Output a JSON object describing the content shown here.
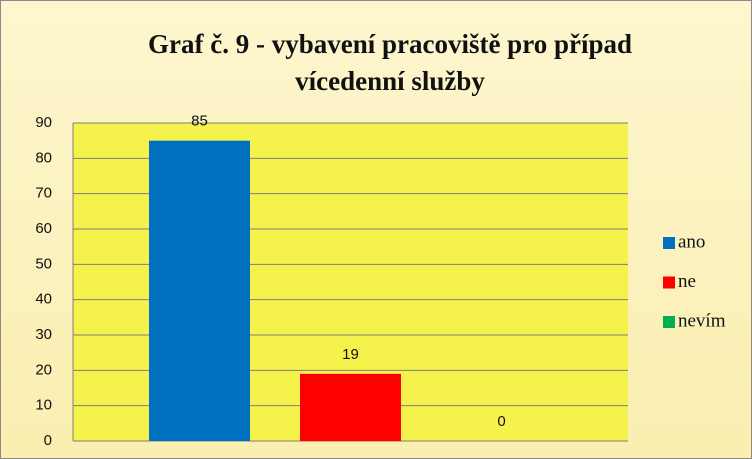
{
  "chart_data": {
    "type": "bar",
    "title": "Graf č. 9 - vybavení pracoviště pro případ vícedenní služby",
    "categories": [
      null
    ],
    "series": [
      {
        "name": "ano",
        "color": "#0070c0",
        "values": [
          85
        ]
      },
      {
        "name": "ne",
        "color": "#ff0000",
        "values": [
          19
        ]
      },
      {
        "name": "nevím",
        "color": "#00b050",
        "values": [
          0
        ]
      }
    ],
    "ylim": [
      0,
      90
    ],
    "yticks": [
      0,
      10,
      20,
      30,
      40,
      50,
      60,
      70,
      80,
      90
    ],
    "grid": true,
    "legend": "right"
  }
}
